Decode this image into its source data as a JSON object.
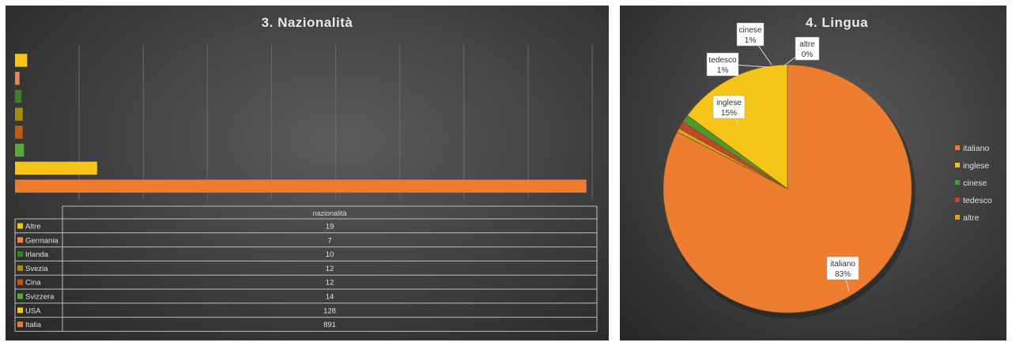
{
  "chart_data": [
    {
      "type": "bar",
      "orientation": "horizontal",
      "title": "3. Nazionalità",
      "series_label": "nazionalità",
      "categories": [
        "Altre",
        "Germania",
        "Irlanda",
        "Svezia",
        "Cina",
        "Svizzera",
        "USA",
        "Italia"
      ],
      "values": [
        19,
        7,
        10,
        12,
        12,
        14,
        128,
        891
      ],
      "colors": [
        "#f5c518",
        "#e8845a",
        "#3f7f2a",
        "#a88a10",
        "#c05a1a",
        "#5aa83a",
        "#f5c518",
        "#ed7d31"
      ],
      "xlim": [
        0,
        900
      ],
      "grid": true,
      "data_table": true
    },
    {
      "type": "pie",
      "title": "4. Lingua",
      "labels": [
        "italiano",
        "inglese",
        "cinese",
        "tedesco",
        "altre"
      ],
      "values": [
        83,
        15,
        1,
        1,
        0
      ],
      "value_labels": [
        "83%",
        "15%",
        "1%",
        "1%",
        "0%"
      ],
      "colors": [
        "#ed7d31",
        "#f5c518",
        "#4a9a2e",
        "#c0452a",
        "#e0a020"
      ],
      "legend": "right"
    }
  ]
}
